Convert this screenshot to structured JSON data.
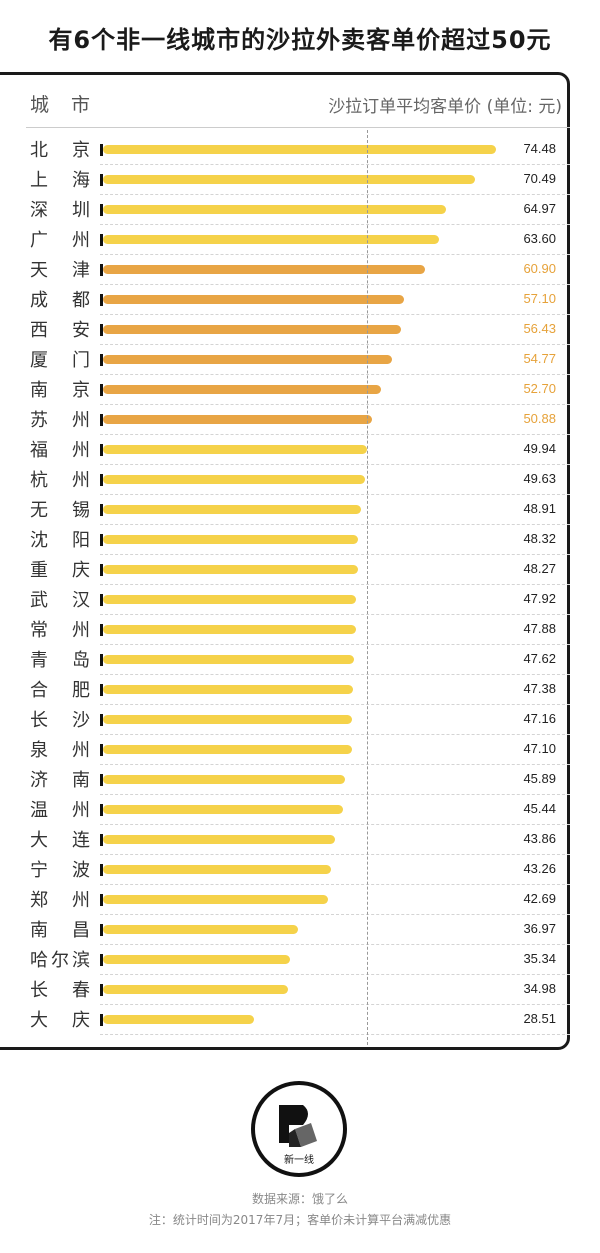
{
  "title": "有6个非一线城市的沙拉外卖客单价超过50元",
  "header": {
    "city_label": "城市",
    "value_label": "沙拉订单平均客单价 (单位: 元)"
  },
  "colors": {
    "normal_bar": "#f5d24a",
    "highlight_bar": "#e8a545",
    "highlight_text": "#e6a23a",
    "frame": "#1a1a1a"
  },
  "chart_data": {
    "type": "bar",
    "orientation": "horizontal",
    "categories": [
      "北 京",
      "上 海",
      "深 圳",
      "广 州",
      "天 津",
      "成 都",
      "西 安",
      "厦 门",
      "南 京",
      "苏 州",
      "福 州",
      "杭 州",
      "无 锡",
      "沈 阳",
      "重 庆",
      "武 汉",
      "常 州",
      "青 岛",
      "合 肥",
      "长 沙",
      "泉 州",
      "济 南",
      "温 州",
      "大 连",
      "宁 波",
      "郑 州",
      "南 昌",
      "哈尔滨",
      "长 春",
      "大 庆"
    ],
    "values": [
      74.48,
      70.49,
      64.97,
      63.6,
      60.9,
      57.1,
      56.43,
      54.77,
      52.7,
      50.88,
      49.94,
      49.63,
      48.91,
      48.32,
      48.27,
      47.92,
      47.88,
      47.62,
      47.38,
      47.16,
      47.1,
      45.89,
      45.44,
      43.86,
      43.26,
      42.69,
      36.97,
      35.34,
      34.98,
      28.51
    ],
    "value_labels": [
      "74.48",
      "70.49",
      "64.97",
      "63.60",
      "60.90",
      "57.10",
      "56.43",
      "54.77",
      "52.70",
      "50.88",
      "49.94",
      "49.63",
      "48.91",
      "48.32",
      "48.27",
      "47.92",
      "47.88",
      "47.62",
      "47.38",
      "47.16",
      "47.10",
      "45.89",
      "45.44",
      "43.86",
      "43.26",
      "42.69",
      "36.97",
      "35.34",
      "34.98",
      "28.51"
    ],
    "highlighted": [
      false,
      false,
      false,
      false,
      true,
      true,
      true,
      true,
      true,
      true,
      false,
      false,
      false,
      false,
      false,
      false,
      false,
      false,
      false,
      false,
      false,
      false,
      false,
      false,
      false,
      false,
      false,
      false,
      false,
      false
    ],
    "reference_line": 50,
    "xlim": [
      0,
      75
    ]
  },
  "footer": {
    "logo_text": "新一线",
    "source": "数据来源：饿了么",
    "note": "注：统计时间为2017年7月；客单价未计算平台满减优惠"
  }
}
